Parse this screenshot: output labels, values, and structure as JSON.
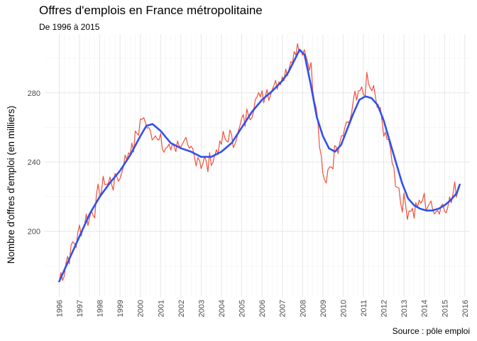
{
  "header": {
    "title": "Offres d'emplois en France métropolitaine",
    "subtitle": "De 1996 à 2015",
    "caption": "Source : pôle emploi"
  },
  "colors": {
    "raw_series": "#f0513a",
    "smooth_series": "#3050f0",
    "grid": "#e6e6e6"
  },
  "chart_data": {
    "type": "line",
    "title": "Offres d'emplois en France métropolitaine",
    "subtitle": "De 1996 à 2015",
    "xlabel": "",
    "ylabel": "Nombre d'offres d'emploi (en milliers)",
    "xlim": [
      1995.25,
      2016.25
    ],
    "ylim": [
      162,
      314
    ],
    "x_ticks": [
      1996,
      1997,
      1998,
      1999,
      2000,
      2001,
      2002,
      2003,
      2004,
      2005,
      2006,
      2007,
      2008,
      2009,
      2010,
      2011,
      2012,
      2013,
      2014,
      2015,
      2016
    ],
    "y_ticks": [
      200,
      240,
      280
    ],
    "grid": true,
    "legend": "none",
    "raw_anchors": [
      [
        1996.0,
        171
      ],
      [
        1996.3,
        180
      ],
      [
        1996.6,
        190
      ],
      [
        1996.9,
        196
      ],
      [
        1997.0,
        200
      ],
      [
        1997.3,
        206
      ],
      [
        1997.7,
        212
      ],
      [
        1998.0,
        224
      ],
      [
        1998.3,
        229
      ],
      [
        1998.6,
        228
      ],
      [
        1999.0,
        232
      ],
      [
        1999.3,
        244
      ],
      [
        1999.7,
        250
      ],
      [
        2000.0,
        264
      ],
      [
        2000.3,
        263
      ],
      [
        2000.6,
        258
      ],
      [
        2001.0,
        250
      ],
      [
        2001.3,
        247
      ],
      [
        2001.6,
        250
      ],
      [
        2002.0,
        251
      ],
      [
        2002.3,
        247
      ],
      [
        2002.7,
        244
      ],
      [
        2003.0,
        241
      ],
      [
        2003.3,
        238
      ],
      [
        2003.6,
        243
      ],
      [
        2004.0,
        251
      ],
      [
        2004.3,
        255
      ],
      [
        2004.6,
        252
      ],
      [
        2005.0,
        262
      ],
      [
        2005.3,
        268
      ],
      [
        2005.6,
        273
      ],
      [
        2006.0,
        281
      ],
      [
        2006.3,
        280
      ],
      [
        2006.6,
        285
      ],
      [
        2007.0,
        290
      ],
      [
        2007.3,
        295
      ],
      [
        2007.6,
        303
      ],
      [
        2007.8,
        305
      ],
      [
        2008.0,
        300
      ],
      [
        2008.2,
        304
      ],
      [
        2008.4,
        293
      ],
      [
        2008.6,
        280
      ],
      [
        2008.8,
        260
      ],
      [
        2009.0,
        232
      ],
      [
        2009.2,
        229
      ],
      [
        2009.4,
        238
      ],
      [
        2009.6,
        245
      ],
      [
        2009.8,
        247
      ],
      [
        2010.0,
        255
      ],
      [
        2010.3,
        263
      ],
      [
        2010.6,
        276
      ],
      [
        2010.9,
        279
      ],
      [
        2011.2,
        286
      ],
      [
        2011.5,
        280
      ],
      [
        2011.8,
        268
      ],
      [
        2012.0,
        260
      ],
      [
        2012.3,
        248
      ],
      [
        2012.6,
        230
      ],
      [
        2012.9,
        217
      ],
      [
        2013.2,
        213
      ],
      [
        2013.5,
        212
      ],
      [
        2013.8,
        216
      ],
      [
        2014.0,
        218
      ],
      [
        2014.3,
        214
      ],
      [
        2014.6,
        213
      ],
      [
        2015.0,
        215
      ],
      [
        2015.3,
        218
      ],
      [
        2015.6,
        225
      ],
      [
        2015.8,
        228
      ]
    ],
    "series": [
      {
        "style": "raw-monthly",
        "x": [],
        "values": []
      },
      {
        "style": "smoothed-trend",
        "x": [
          1996.0,
          1996.5,
          1997.0,
          1997.5,
          1998.0,
          1998.5,
          1999.0,
          1999.5,
          2000.0,
          2000.3,
          2000.6,
          2001.0,
          2001.5,
          2002.0,
          2002.5,
          2003.0,
          2003.5,
          2004.0,
          2004.5,
          2005.0,
          2005.5,
          2006.0,
          2006.5,
          2007.0,
          2007.3,
          2007.6,
          2007.85,
          2008.1,
          2008.4,
          2008.7,
          2009.0,
          2009.3,
          2009.6,
          2009.9,
          2010.2,
          2010.5,
          2010.8,
          2011.1,
          2011.4,
          2011.7,
          2012.0,
          2012.3,
          2012.6,
          2012.9,
          2013.2,
          2013.5,
          2013.8,
          2014.1,
          2014.4,
          2014.7,
          2015.0,
          2015.3,
          2015.6,
          2015.75
        ],
        "values": [
          171,
          184,
          197,
          210,
          220,
          228,
          235,
          244,
          255,
          261,
          262,
          258,
          251,
          248,
          246,
          243,
          243,
          246,
          251,
          260,
          269,
          276,
          281,
          287,
          292,
          299,
          305,
          302,
          285,
          266,
          255,
          248,
          246,
          250,
          259,
          268,
          276,
          278,
          277,
          273,
          264,
          252,
          240,
          228,
          219,
          215,
          213,
          212,
          212,
          213,
          215,
          218,
          222,
          227
        ]
      }
    ]
  }
}
